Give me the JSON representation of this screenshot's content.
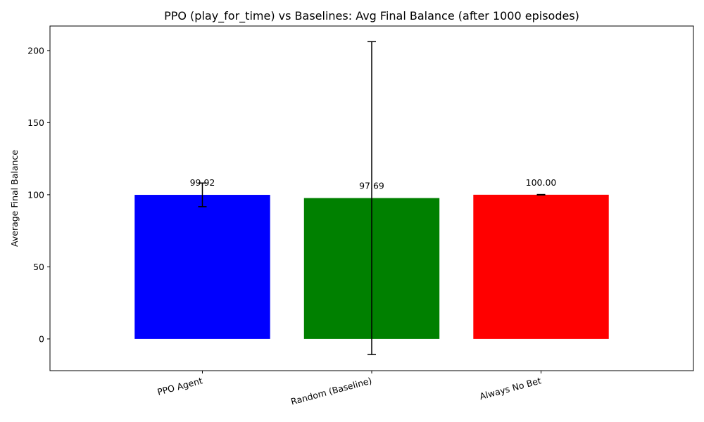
{
  "chart_data": {
    "type": "bar",
    "title": "PPO (play_for_time) vs Baselines: Avg Final Balance (after 1000 episodes)",
    "xlabel": "",
    "ylabel": "Average Final Balance",
    "ylim": [
      -22,
      217
    ],
    "yticks": [
      0,
      50,
      100,
      150,
      200
    ],
    "categories": [
      "PPO Agent",
      "Random (Baseline)",
      "Always No Bet"
    ],
    "values": [
      99.92,
      97.69,
      100.0
    ],
    "errors": [
      8.2,
      108.5,
      0.15
    ],
    "data_labels": [
      "99.92",
      "97.69",
      "100.00"
    ],
    "colors": [
      "#0000ff",
      "#008000",
      "#ff0000"
    ],
    "grid": false,
    "legend": "none"
  }
}
